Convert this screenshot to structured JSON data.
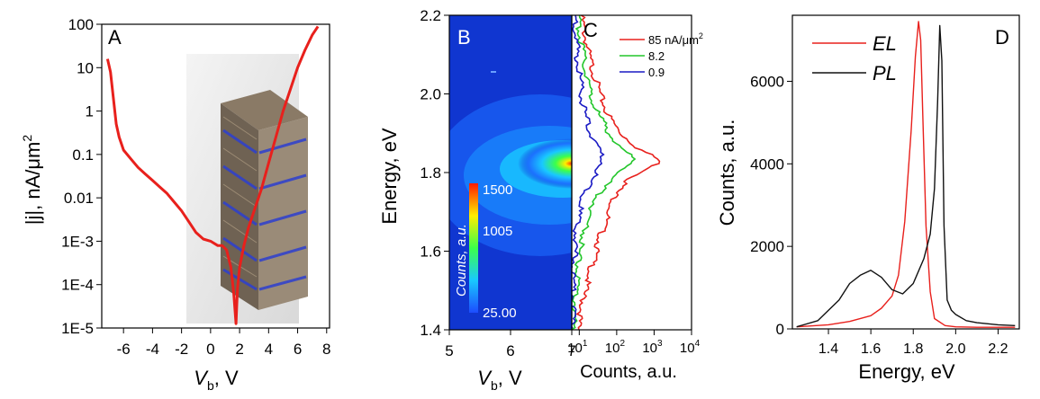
{
  "panels": {
    "A": {
      "letter": "A"
    },
    "B": {
      "letter": "B"
    },
    "C": {
      "letter": "C"
    },
    "D": {
      "letter": "D"
    }
  },
  "colors": {
    "red": "#e8201c",
    "green": "#22c62a",
    "blue": "#1a1ac4",
    "black": "#111111",
    "heat_bg": "#1036d0"
  },
  "chart_data": [
    {
      "id": "A",
      "type": "line",
      "title": "",
      "xlabel_main": "V",
      "xlabel_sub": "b",
      "xlabel_unit": ", V",
      "ylabel": "|j|, nA/μm",
      "ylabel_sup": "2",
      "xlim": [
        -7.5,
        8.2
      ],
      "ylim_log10": [
        -5,
        2
      ],
      "log_y": true,
      "xticks": [
        "-6",
        "-4",
        "-2",
        "0",
        "2",
        "4",
        "6",
        "8"
      ],
      "xtick_values": [
        -6,
        -4,
        -2,
        0,
        2,
        4,
        6,
        8
      ],
      "yticks": [
        "100",
        "10",
        "1",
        "0.1",
        "0.01",
        "1E-3",
        "1E-4",
        "1E-5"
      ],
      "ytick_values": [
        2,
        1,
        0,
        -1,
        -2,
        -3,
        -4,
        -5
      ],
      "series": [
        {
          "color": "red",
          "x": [
            -7.1,
            -6.9,
            -6.7,
            -6.5,
            -6.3,
            -6.0,
            -5.5,
            -5.0,
            -4.5,
            -4.0,
            -3.5,
            -3.0,
            -2.5,
            -2.0,
            -1.5,
            -1.0,
            -0.5,
            0.0,
            0.5,
            0.8,
            1.1,
            1.4,
            1.6,
            1.75,
            1.85,
            2.0,
            2.3,
            2.6,
            3.0,
            3.5,
            4.0,
            4.5,
            5.0,
            5.5,
            6.0,
            6.5,
            7.0,
            7.4
          ],
          "log10y": [
            1.2,
            0.9,
            0.3,
            -0.3,
            -0.6,
            -0.9,
            -1.1,
            -1.3,
            -1.45,
            -1.6,
            -1.75,
            -1.9,
            -2.1,
            -2.3,
            -2.55,
            -2.8,
            -2.95,
            -3.0,
            -3.1,
            -3.1,
            -3.2,
            -3.6,
            -4.2,
            -4.9,
            -4.1,
            -3.6,
            -3.1,
            -2.7,
            -2.3,
            -1.8,
            -1.2,
            -0.6,
            0.0,
            0.5,
            1.0,
            1.4,
            1.75,
            1.95
          ]
        }
      ]
    },
    {
      "id": "B",
      "type": "heatmap",
      "title": "",
      "xlabel_main": "V",
      "xlabel_sub": "b",
      "xlabel_unit": ", V",
      "ylabel": "Energy, eV",
      "xlim": [
        5,
        7
      ],
      "ylim": [
        1.4,
        2.2
      ],
      "xticks": [
        "5",
        "6",
        "7"
      ],
      "xtick_values": [
        5,
        6,
        7
      ],
      "yticks": [
        "2.2",
        "2.0",
        "1.8",
        "1.6",
        "1.4"
      ],
      "ytick_values": [
        2.2,
        2.0,
        1.8,
        1.6,
        1.4
      ],
      "colorbar_label": "Counts, a.u.",
      "colorbar_ticks": [
        "1500",
        "1005",
        "25.00"
      ],
      "colorbar_tick_values": [
        1500,
        1005,
        25
      ],
      "peak": {
        "x": 7.0,
        "y": 1.83,
        "value": 1500
      }
    },
    {
      "id": "C",
      "type": "line",
      "title": "",
      "xlabel": "Counts, a.u.",
      "log_x": true,
      "xlim_log10": [
        0.8,
        4.0
      ],
      "ylim": [
        1.4,
        2.2
      ],
      "xticks_base": [
        "10",
        "10",
        "10",
        "10"
      ],
      "xticks_exp": [
        "1",
        "2",
        "3",
        "4"
      ],
      "xtick_values": [
        1,
        2,
        3,
        4
      ],
      "legend_position": "top-right",
      "series": [
        {
          "name": "85 nA/μm",
          "name_sup": "2",
          "color": "red",
          "energy": [
            2.2,
            2.1,
            2.0,
            1.95,
            1.9,
            1.86,
            1.84,
            1.83,
            1.82,
            1.8,
            1.78,
            1.75,
            1.7,
            1.65,
            1.6,
            1.55,
            1.5,
            1.45,
            1.4
          ],
          "log10counts": [
            1.05,
            1.25,
            1.55,
            1.75,
            2.1,
            2.6,
            3.0,
            3.15,
            3.05,
            2.7,
            2.3,
            2.0,
            1.8,
            1.6,
            1.45,
            1.3,
            1.15,
            1.05,
            0.95
          ]
        },
        {
          "name": "8.2",
          "color": "green",
          "energy": [
            2.2,
            2.1,
            2.0,
            1.95,
            1.9,
            1.86,
            1.84,
            1.83,
            1.82,
            1.8,
            1.78,
            1.75,
            1.7,
            1.65,
            1.6,
            1.55,
            1.5,
            1.45,
            1.4
          ],
          "log10counts": [
            0.95,
            1.1,
            1.3,
            1.5,
            1.8,
            2.15,
            2.4,
            2.45,
            2.4,
            2.1,
            1.8,
            1.55,
            1.3,
            1.15,
            1.0,
            0.95,
            0.9,
            0.88,
            0.85
          ]
        },
        {
          "name": "0.9",
          "color": "blue",
          "energy": [
            2.2,
            2.1,
            2.0,
            1.95,
            1.9,
            1.86,
            1.84,
            1.83,
            1.82,
            1.8,
            1.78,
            1.75,
            1.7,
            1.65,
            1.6,
            1.55,
            1.5,
            1.45,
            1.4
          ],
          "log10counts": [
            0.88,
            0.95,
            1.05,
            1.15,
            1.3,
            1.5,
            1.6,
            1.65,
            1.6,
            1.45,
            1.3,
            1.15,
            1.0,
            0.92,
            0.88,
            0.85,
            0.84,
            0.83,
            0.82
          ]
        }
      ]
    },
    {
      "id": "D",
      "type": "line",
      "title": "",
      "xlabel": "Energy, eV",
      "ylabel": "Counts, a.u.",
      "xlim": [
        1.23,
        2.3
      ],
      "ylim": [
        0,
        7600
      ],
      "xticks": [
        "1.4",
        "1.6",
        "1.8",
        "2.0",
        "2.2"
      ],
      "xtick_values": [
        1.4,
        1.6,
        1.8,
        2.0,
        2.2
      ],
      "yticks": [
        "0",
        "2000",
        "4000",
        "6000"
      ],
      "ytick_values": [
        0,
        2000,
        4000,
        6000
      ],
      "legend_position": "top-left",
      "series": [
        {
          "name": "EL",
          "color": "red",
          "x": [
            1.25,
            1.4,
            1.5,
            1.6,
            1.65,
            1.7,
            1.73,
            1.76,
            1.79,
            1.81,
            1.825,
            1.835,
            1.845,
            1.86,
            1.88,
            1.9,
            1.95,
            2.0,
            2.1,
            2.2,
            2.28
          ],
          "y": [
            50,
            100,
            180,
            320,
            500,
            800,
            1300,
            2600,
            4800,
            6600,
            7450,
            7000,
            5200,
            2500,
            900,
            250,
            80,
            50,
            40,
            40,
            40
          ]
        },
        {
          "name": "PL",
          "color": "black",
          "x": [
            1.25,
            1.35,
            1.45,
            1.5,
            1.55,
            1.6,
            1.65,
            1.7,
            1.75,
            1.8,
            1.85,
            1.88,
            1.9,
            1.915,
            1.925,
            1.935,
            1.945,
            1.96,
            1.98,
            2.0,
            2.05,
            2.1,
            2.2,
            2.28
          ],
          "y": [
            50,
            200,
            700,
            1100,
            1300,
            1420,
            1250,
            950,
            850,
            1100,
            1700,
            2300,
            3400,
            5500,
            7350,
            6500,
            2500,
            700,
            450,
            350,
            200,
            150,
            100,
            80
          ]
        }
      ]
    }
  ]
}
